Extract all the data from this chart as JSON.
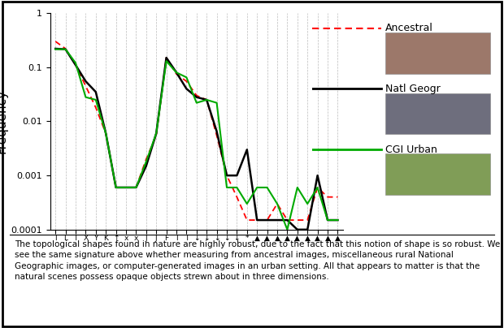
{
  "ylabel": "Frequency",
  "ancestral": [
    0.3,
    0.22,
    0.11,
    0.045,
    0.018,
    0.006,
    0.0006,
    0.0006,
    0.0006,
    0.002,
    0.0055,
    0.15,
    0.075,
    0.055,
    0.03,
    0.025,
    0.0055,
    0.001,
    0.0004,
    0.00015,
    0.00015,
    0.00015,
    0.0003,
    0.00015,
    0.00015,
    0.00015,
    0.0006,
    0.0004,
    0.0004
  ],
  "natl_geogr": [
    0.22,
    0.215,
    0.11,
    0.055,
    0.035,
    0.006,
    0.0006,
    0.0006,
    0.0006,
    0.0015,
    0.006,
    0.15,
    0.08,
    0.04,
    0.028,
    0.025,
    0.0065,
    0.001,
    0.001,
    0.003,
    0.00015,
    0.00015,
    0.00015,
    0.00015,
    0.0001,
    0.0001,
    0.001,
    0.00015,
    0.00015
  ],
  "cgi_urban": [
    0.215,
    0.215,
    0.12,
    0.028,
    0.025,
    0.006,
    0.0006,
    0.0006,
    0.0006,
    0.0018,
    0.006,
    0.13,
    0.08,
    0.065,
    0.022,
    0.025,
    0.022,
    0.0006,
    0.0006,
    0.0003,
    0.0006,
    0.0006,
    0.0003,
    0.0001,
    0.0006,
    0.0003,
    0.0006,
    0.00015,
    0.00015
  ],
  "ancestral_color": "#ff0000",
  "natl_color": "#000000",
  "cgi_color": "#00aa00",
  "caption": "The topological shapes found in nature are highly robust, due to the fact that this notion of shape is so robust. We see the same signature above whether measuring from ancestral images, miscellaneous rural National Geographic images, or computer-generated images in an urban setting. All that appears to matter is that the natural scenes possess opaque objects strewn about in three dimensions.",
  "ylim_min": 0.0001,
  "ylim_max": 1.0,
  "grid_color": "#aaaaaa",
  "xtick_labels": [
    "I",
    "L",
    "T",
    "X",
    "Y",
    "K",
    "↑",
    "x",
    "x",
    "J",
    "J",
    "F",
    "I",
    "T",
    "↓",
    "↓",
    "↓",
    "↓",
    "↓",
    "*",
    "▲",
    "▲",
    "▲",
    "▲",
    "▲",
    "▲",
    "▲",
    "▲",
    "▲"
  ]
}
